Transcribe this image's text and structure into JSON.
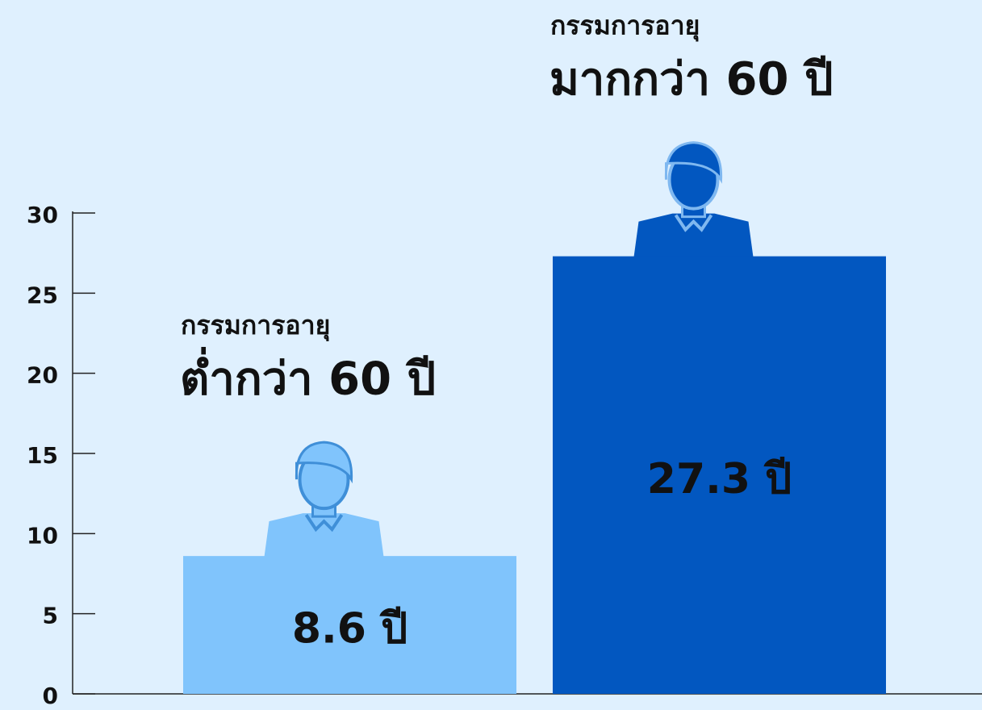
{
  "chart_data": {
    "type": "bar",
    "categories": [
      [
        "กรรมการอายุ",
        "ต่ำกว่า 60 ปี"
      ],
      [
        "กรรมการอายุ",
        "มากกว่า 60 ปี"
      ]
    ],
    "values": [
      8.6,
      27.3
    ],
    "value_labels": [
      "8.6 ปี",
      "27.3 ปี"
    ],
    "colors": [
      "#80c4fc",
      "#0257c0"
    ],
    "label_colors": [
      "#111111",
      "#ffffff"
    ],
    "ylim": [
      0,
      30
    ],
    "yticks": [
      0,
      5,
      10,
      15,
      20,
      25,
      30
    ]
  }
}
